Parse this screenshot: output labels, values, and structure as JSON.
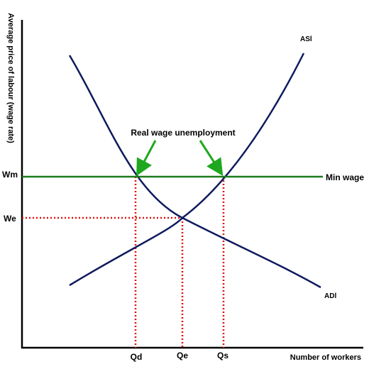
{
  "diagram": {
    "y_axis_label": "Average price of labour (wage rate)",
    "x_axis_label": "Number of workers",
    "supply_curve_label": "ASl",
    "demand_curve_label": "ADl",
    "min_wage_label": "Min wage",
    "annotation": "Real wage unemployment",
    "wage_levels": {
      "min": "Wm",
      "equilibrium": "We"
    },
    "quantities": {
      "demanded": "Qd",
      "equilibrium": "Qe",
      "supplied": "Qs"
    },
    "colors": {
      "curves": "#0f1a5e",
      "min_wage_line": "#1a7a1a",
      "arrows": "#1fa81f",
      "guides": "#e01010",
      "axes": "#000000"
    }
  }
}
